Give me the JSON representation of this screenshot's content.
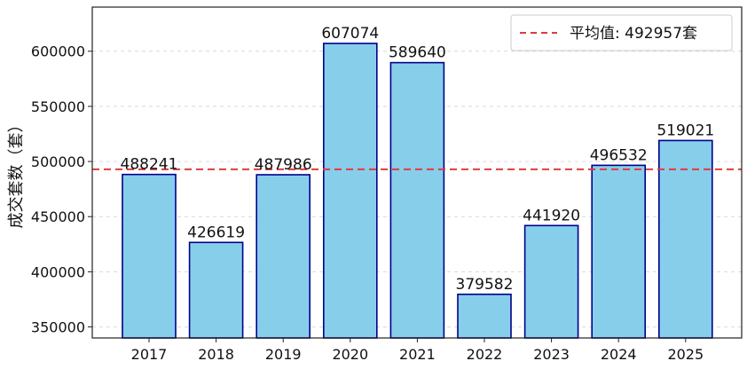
{
  "chart_data": {
    "type": "bar",
    "categories": [
      "2017",
      "2018",
      "2019",
      "2020",
      "2021",
      "2022",
      "2023",
      "2024",
      "2025"
    ],
    "values": [
      488241,
      426619,
      487986,
      607074,
      589640,
      379582,
      441920,
      496532,
      519021
    ],
    "data_labels": [
      "488241",
      "426619",
      "487986",
      "607074",
      "589640",
      "379582",
      "441920",
      "496532",
      "519021"
    ],
    "ylabel": "成交套数（套）",
    "xlabel": "",
    "ylim": [
      340000,
      640000
    ],
    "yticks": [
      350000,
      400000,
      450000,
      500000,
      550000,
      600000
    ],
    "ytick_labels": [
      "350000",
      "400000",
      "450000",
      "500000",
      "550000",
      "600000"
    ],
    "grid": "horizontal-dashed",
    "reference_line": {
      "value": 492957,
      "style": "dashed",
      "color": "#e03c3c"
    },
    "legend": {
      "position": "top-right",
      "entries": [
        "平均值: 492957套"
      ]
    },
    "colors": {
      "bar_fill": "#87ceeb",
      "bar_edge": "#00008b",
      "avg_line": "#e03c3c"
    }
  }
}
